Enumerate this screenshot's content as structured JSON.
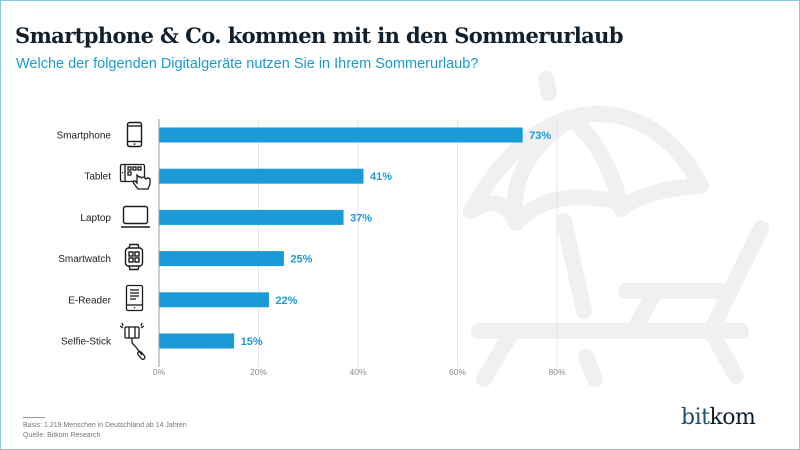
{
  "header": {
    "title": "Smartphone & Co. kommen mit in den Sommerurlaub",
    "subtitle": "Welche der folgenden Digitalgeräte nutzen Sie in Ihrem Sommerurlaub?"
  },
  "colors": {
    "bar": "#1a9ad6",
    "title": "#12202c",
    "accent": "#1a9ad6",
    "border": "#8cc8e6",
    "watermark": "#f0f0f0"
  },
  "chart_data": {
    "type": "bar",
    "orientation": "horizontal",
    "title": "Smartphone & Co. kommen mit in den Sommerurlaub",
    "subtitle": "Welche der folgenden Digitalgeräte nutzen Sie in Ihrem Sommerurlaub?",
    "categories": [
      "Smartphone",
      "Tablet",
      "Laptop",
      "Smartwatch",
      "E-Reader",
      "Selfie-Stick"
    ],
    "category_icons": [
      "smartphone-icon",
      "tablet-icon",
      "laptop-icon",
      "smartwatch-icon",
      "e-reader-icon",
      "selfie-stick-icon"
    ],
    "values": [
      73,
      41,
      37,
      25,
      22,
      15
    ],
    "value_labels": [
      "73%",
      "41%",
      "37%",
      "25%",
      "22%",
      "15%"
    ],
    "unit": "%",
    "xlabel": "",
    "ylabel": "",
    "xlim": [
      0,
      80
    ],
    "xticks": [
      0,
      20,
      40,
      60,
      80
    ],
    "xtick_labels": [
      "0%",
      "20%",
      "40%",
      "60%",
      "80%"
    ],
    "grid": true,
    "legend": "none"
  },
  "footer": {
    "basis": "Basis: 1.219 Menschen in Deutschland ab 14 Jahren",
    "source": "Quelle: Bitkom Research"
  },
  "logo": {
    "part1": "bit",
    "part2": "kom"
  },
  "watermark": {
    "icon": "beach-umbrella-lounger-icon"
  }
}
